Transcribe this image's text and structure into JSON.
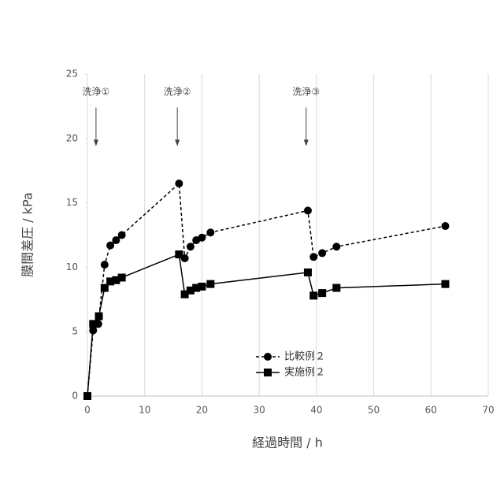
{
  "chart_data": {
    "type": "line",
    "x_label": "経過時間 / h",
    "y_label": "膜間差圧 / kPa",
    "xlim": [
      0,
      70
    ],
    "xticks": [
      0,
      10,
      20,
      30,
      40,
      50,
      60,
      70
    ],
    "ylim": [
      0,
      25
    ],
    "yticks": [
      0,
      5,
      10,
      15,
      20,
      25
    ],
    "grid": "x",
    "legend": "bottom-center",
    "annotations": [
      {
        "text": "洗浄①",
        "x": 1.5
      },
      {
        "text": "洗浄②",
        "x": 15.7
      },
      {
        "text": "洗浄③",
        "x": 38.2
      }
    ],
    "series": [
      {
        "name": "比較例２",
        "color": "#000000",
        "marker": "circle",
        "dash": true,
        "x": [
          0,
          1,
          1.9,
          3,
          4,
          5,
          6,
          16,
          17,
          18,
          19,
          20,
          21.5,
          38.5,
          39.5,
          41,
          43.5,
          62.5
        ],
        "values": [
          0,
          5.1,
          5.6,
          10.2,
          11.7,
          12.1,
          12.5,
          16.5,
          10.7,
          11.6,
          12.1,
          12.3,
          12.7,
          14.4,
          10.8,
          11.1,
          11.6,
          13.2
        ]
      },
      {
        "name": "実施例２",
        "color": "#000000",
        "marker": "square",
        "dash": false,
        "x": [
          0,
          1,
          2,
          3,
          4,
          5,
          6,
          16,
          17,
          18,
          19,
          20,
          21.5,
          38.5,
          39.5,
          41,
          43.5,
          62.5
        ],
        "values": [
          0,
          5.6,
          6.2,
          8.4,
          8.9,
          9.0,
          9.2,
          11.0,
          7.9,
          8.2,
          8.4,
          8.5,
          8.7,
          9.6,
          7.8,
          8.0,
          8.4,
          8.7
        ]
      }
    ]
  }
}
